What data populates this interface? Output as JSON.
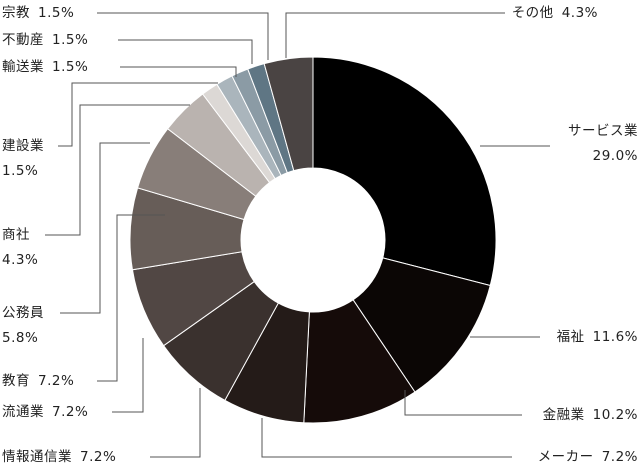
{
  "chart_data": {
    "type": "donut",
    "categories": [
      "サービス業",
      "福祉",
      "金融業",
      "メーカー",
      "情報通信業",
      "流通業",
      "教育",
      "公務員",
      "商社",
      "建設業",
      "輸送業",
      "不動産",
      "宗教",
      "その他"
    ],
    "values": [
      29.0,
      11.6,
      10.2,
      7.2,
      7.2,
      7.2,
      7.2,
      5.8,
      4.3,
      1.5,
      1.5,
      1.5,
      1.5,
      4.3
    ],
    "value_labels": [
      "29.0%",
      "11.6%",
      "10.2%",
      "7.2%",
      "7.2%",
      "7.2%",
      "7.2%",
      "5.8%",
      "4.3%",
      "1.5%",
      "1.5%",
      "1.5%",
      "1.5%",
      "4.3%"
    ],
    "colors": [
      "#000000",
      "#0b0605",
      "#150b09",
      "#241b18",
      "#3a312e",
      "#514744",
      "#675d58",
      "#887e79",
      "#bab3af",
      "#dcd8d5",
      "#aab5bc",
      "#8b9ba5",
      "#5f7684",
      "#4a4443"
    ]
  }
}
